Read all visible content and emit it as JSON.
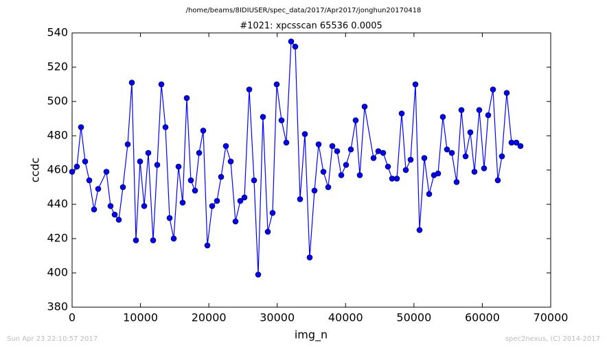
{
  "header": "/home/beams/8IDIUSER/spec_data/2017/Apr2017/jonghun20170418",
  "footer": {
    "left": "Sun Apr 23 22:10:57 2017",
    "right": "spec2nexus, (C) 2014-2017"
  },
  "chart_data": {
    "type": "line",
    "title": "#1021: xpcsscan 65536 0.0005",
    "x_label": "img_n",
    "y_label": "ccdc",
    "xlim": [
      0,
      70000
    ],
    "ylim": [
      380,
      540
    ],
    "xticks": [
      0,
      10000,
      20000,
      30000,
      40000,
      50000,
      60000,
      70000
    ],
    "yticks": [
      380,
      400,
      420,
      440,
      460,
      480,
      500,
      520,
      540
    ],
    "color": "#0000ff",
    "x": [
      0,
      703,
      1305,
      1908,
      2511,
      3214,
      3816,
      5021,
      5624,
      6227,
      6829,
      7432,
      8135,
      8737,
      9340,
      9943,
      10545,
      11148,
      11851,
      12453,
      13056,
      13658,
      14261,
      14864,
      15567,
      16169,
      16772,
      17374,
      17977,
      18580,
      19182,
      19785,
      20488,
      21191,
      21793,
      22496,
      23199,
      23902,
      24605,
      25208,
      25911,
      26614,
      27217,
      27919,
      28622,
      29325,
      29928,
      30631,
      31334,
      32037,
      32640,
      33343,
      34046,
      34749,
      35452,
      36054,
      36757,
      37460,
      38063,
      38766,
      39369,
      40072,
      40775,
      41478,
      42080,
      42783,
      44089,
      44792,
      45495,
      46198,
      46800,
      47503,
      48206,
      48809,
      49512,
      50215,
      50817,
      51520,
      52223,
      52926,
      53529,
      54232,
      54834,
      55537,
      56240,
      56943,
      57546,
      58249,
      58851,
      59554,
      60257,
      60860,
      61563,
      62266,
      62868,
      63571,
      64274,
      64977,
      65580
    ],
    "values": [
      459,
      462,
      485,
      465,
      454,
      437,
      449,
      459,
      439,
      434,
      431,
      450,
      475,
      511,
      419,
      465,
      439,
      470,
      419,
      463,
      510,
      485,
      432,
      420,
      462,
      441,
      502,
      454,
      448,
      470,
      483,
      416,
      439,
      442,
      456,
      474,
      465,
      430,
      442,
      444,
      507,
      454,
      399,
      491,
      424,
      435,
      510,
      489,
      476,
      535,
      532,
      443,
      481,
      409,
      448,
      475,
      459,
      450,
      474,
      471,
      457,
      463,
      472,
      489,
      457,
      497,
      467,
      471,
      470,
      462,
      455,
      455,
      493,
      460,
      466,
      510,
      425,
      467,
      446,
      457,
      458,
      491,
      472,
      470,
      453,
      495,
      468,
      482,
      459,
      495,
      461,
      492,
      507,
      454,
      468,
      505,
      476,
      476,
      474
    ]
  }
}
